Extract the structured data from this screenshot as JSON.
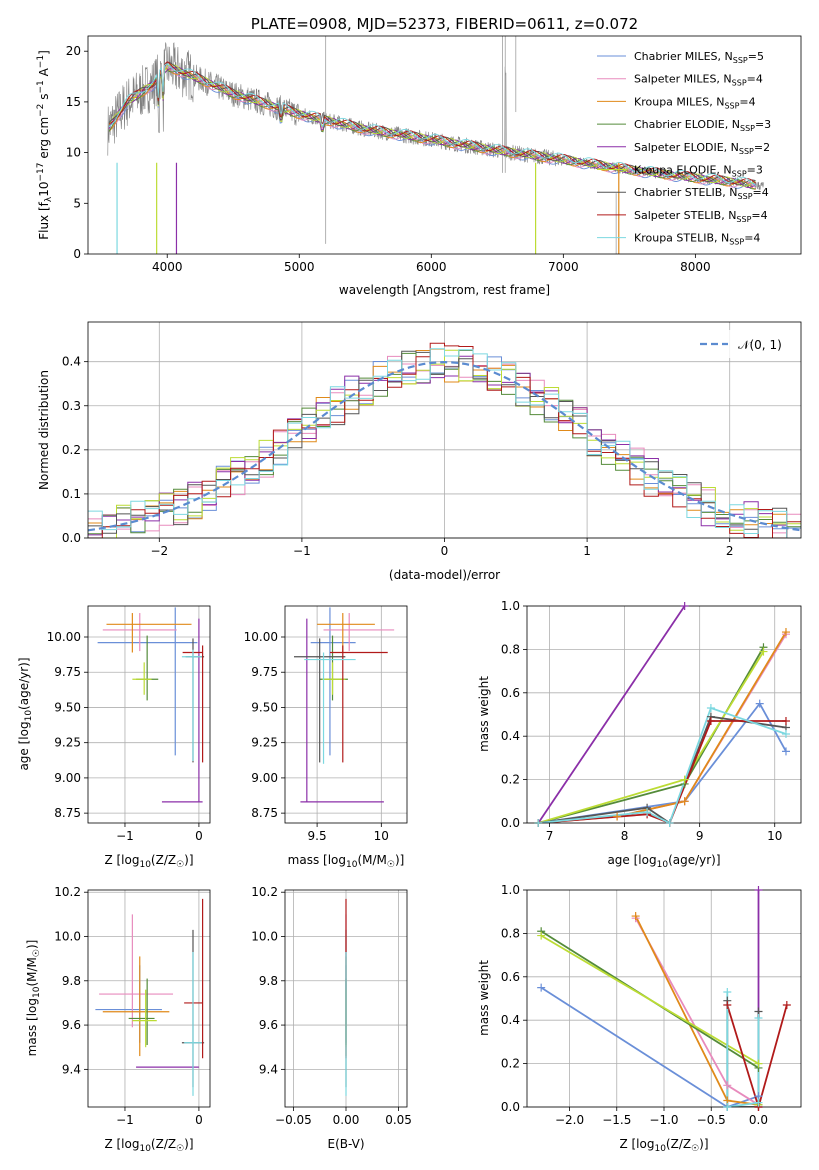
{
  "colors": [
    "#6a8fd8",
    "#e88bbd",
    "#e08a1a",
    "#548b3a",
    "#8b2fa8",
    "#bcdc34",
    "#555555",
    "#b11a1a",
    "#7cd8e0"
  ],
  "chart_data": [
    {
      "id": "spectrum",
      "type": "line",
      "title": "PLATE=0908, MJD=52373, FIBERID=0611, z=0.072",
      "xlabel": "wavelength [Angstrom, rest frame]",
      "ylabel_main": "Flux [f",
      "ylabel_sub": "λ",
      "ylabel_rest": "10",
      "ylabel_sup1": "−17",
      "ylabel_mid": " erg cm",
      "ylabel_sup2": "−2",
      "ylabel_mid2": " s",
      "ylabel_sup3": "−1",
      "ylabel_mid3": " A",
      "ylabel_sup4": "−1",
      "ylabel_end": "]",
      "xlim": [
        3400,
        8800
      ],
      "ylim": [
        0,
        21.5
      ],
      "xticks": [
        4000,
        5000,
        6000,
        7000,
        8000
      ],
      "yticks": [
        0,
        5,
        10,
        15,
        20
      ],
      "grid": false,
      "legend": "upper-right",
      "data_color": "#808080",
      "anchors_x": [
        3550,
        3700,
        3900,
        4000,
        4200,
        4500,
        5000,
        5500,
        6000,
        6500,
        7000,
        7500,
        8000,
        8300,
        8500
      ],
      "anchors_y": [
        12.3,
        15.0,
        16.8,
        18.5,
        17.5,
        15.8,
        13.8,
        12.3,
        11.3,
        10.2,
        9.3,
        8.3,
        7.5,
        7.1,
        6.7
      ],
      "series": [
        {
          "name": "Chabrier MILES, N",
          "sub": "SSP",
          "count": "=5"
        },
        {
          "name": "Salpeter MILES, N",
          "sub": "SSP",
          "count": "=4"
        },
        {
          "name": "Kroupa MILES, N",
          "sub": "SSP",
          "count": "=4"
        },
        {
          "name": "Chabrier ELODIE, N",
          "sub": "SSP",
          "count": "=3"
        },
        {
          "name": "Salpeter ELODIE, N",
          "sub": "SSP",
          "count": "=2"
        },
        {
          "name": "Kroupa ELODIE, N",
          "sub": "SSP",
          "count": "=3"
        },
        {
          "name": "Chabrier STELIB, N",
          "sub": "SSP",
          "count": "=4"
        },
        {
          "name": "Salpeter STELIB, N",
          "sub": "SSP",
          "count": "=4"
        },
        {
          "name": "Kroupa STELIB, N",
          "sub": "SSP",
          "count": "=4"
        }
      ]
    },
    {
      "id": "residuals",
      "type": "step",
      "xlabel": "(data-model)/error",
      "ylabel": "Normed distribution",
      "xlim": [
        -2.5,
        2.5
      ],
      "ylim": [
        0,
        0.49
      ],
      "xticks": [
        -2,
        -1,
        0,
        1,
        2
      ],
      "yticks": [
        0.0,
        0.1,
        0.2,
        0.3,
        0.4
      ],
      "grid": true,
      "legend": "upper-right",
      "gaussian_label": "𝒩(0, 1)",
      "gaussian_color": "#5b8bd0",
      "bin_width": 0.1
    },
    {
      "id": "age-vs-Z",
      "type": "errorbar",
      "xlabel": "Z [log",
      "xlabel_sub": "10",
      "xlabel_rest": "(Z/Z",
      "xlabel_sub2": "☉",
      "xlabel_end": ")]",
      "ylabel": "age  [log",
      "ylabel_sub": "10",
      "ylabel_rest": "(age/yr)]",
      "xlim": [
        -1.5,
        0.15
      ],
      "ylim": [
        8.68,
        10.22
      ],
      "xticks": [
        -1,
        0
      ],
      "yticks": [
        8.75,
        9.0,
        9.25,
        9.5,
        9.75,
        10.0
      ],
      "grid": true,
      "points": [
        {
          "x": -0.32,
          "y": 9.96,
          "xerr": [
            1.05,
            0.3
          ],
          "yerr": [
            0.8,
            0.25
          ]
        },
        {
          "x": -0.8,
          "y": 10.05,
          "xerr": [
            0.5,
            0.5
          ],
          "yerr": [
            0.15,
            0.12
          ]
        },
        {
          "x": -0.9,
          "y": 10.09,
          "xerr": [
            0.35,
            0.8
          ],
          "yerr": [
            0.2,
            0.08
          ]
        },
        {
          "x": -0.7,
          "y": 9.7,
          "xerr": [
            0.15,
            0.15
          ],
          "yerr": [
            0.15,
            0.31
          ]
        },
        {
          "x": 0.0,
          "y": 8.83,
          "xerr": [
            0.5,
            0.05
          ],
          "yerr": [
            0.0,
            1.3
          ]
        },
        {
          "x": -0.74,
          "y": 9.7,
          "xerr": [
            0.16,
            0.1
          ],
          "yerr": [
            0.11,
            0.12
          ]
        },
        {
          "x": -0.08,
          "y": 9.86,
          "xerr": [
            0.1,
            0.15
          ],
          "yerr": [
            0.75,
            0.13
          ]
        },
        {
          "x": 0.05,
          "y": 9.89,
          "xerr": [
            0.27,
            0.0
          ],
          "yerr": [
            0.78,
            0.05
          ]
        },
        {
          "x": -0.08,
          "y": 9.86,
          "xerr": [
            0.15,
            0.12
          ],
          "yerr": [
            0.74,
            0.05
          ]
        }
      ]
    },
    {
      "id": "age-vs-mass",
      "type": "errorbar",
      "xlabel": "mass [log",
      "xlabel_sub": "10",
      "xlabel_rest": "(M/M",
      "xlabel_sub2": "☉",
      "xlabel_end": ")]",
      "xlim": [
        9.25,
        10.2
      ],
      "ylim": [
        8.68,
        10.22
      ],
      "xticks": [
        9.5,
        10.0
      ],
      "yticks": [
        8.75,
        9.0,
        9.25,
        9.5,
        9.75,
        10.0
      ],
      "grid": true,
      "points": [
        {
          "x": 9.6,
          "y": 9.96,
          "xerr": [
            0.15,
            0.2
          ],
          "yerr": [
            0.8,
            0.25
          ]
        },
        {
          "x": 9.75,
          "y": 10.05,
          "xerr": [
            0.2,
            0.35
          ],
          "yerr": [
            0.15,
            0.12
          ]
        },
        {
          "x": 9.7,
          "y": 10.09,
          "xerr": [
            0.2,
            0.25
          ],
          "yerr": [
            0.2,
            0.08
          ]
        },
        {
          "x": 9.62,
          "y": 9.7,
          "xerr": [
            0.1,
            0.12
          ],
          "yerr": [
            0.15,
            0.31
          ]
        },
        {
          "x": 9.42,
          "y": 8.83,
          "xerr": [
            0.05,
            0.6
          ],
          "yerr": [
            0.0,
            1.3
          ]
        },
        {
          "x": 9.62,
          "y": 9.7,
          "xerr": [
            0.08,
            0.1
          ],
          "yerr": [
            0.11,
            0.12
          ]
        },
        {
          "x": 9.52,
          "y": 9.86,
          "xerr": [
            0.2,
            0.2
          ],
          "yerr": [
            0.75,
            0.13
          ]
        },
        {
          "x": 9.7,
          "y": 9.89,
          "xerr": [
            0.1,
            0.35
          ],
          "yerr": [
            0.78,
            0.05
          ]
        },
        {
          "x": 9.55,
          "y": 9.84,
          "xerr": [
            0.15,
            0.25
          ],
          "yerr": [
            0.74,
            0.05
          ]
        }
      ]
    },
    {
      "id": "weight-vs-age",
      "type": "line",
      "xlabel": "age  [log",
      "xlabel_sub": "10",
      "xlabel_rest": "(age/yr)]",
      "ylabel": "mass weight",
      "xlim": [
        6.7,
        10.35
      ],
      "ylim": [
        0,
        1.0
      ],
      "xticks": [
        7,
        8,
        9,
        10
      ],
      "yticks": [
        0.0,
        0.2,
        0.4,
        0.6,
        0.8,
        1.0
      ],
      "grid": true,
      "series": [
        {
          "x": [
            6.85,
            8.8,
            9.8,
            10.15
          ],
          "y": [
            0.0,
            0.1,
            0.55,
            0.33
          ]
        },
        {
          "x": [
            6.85,
            7.9,
            8.8,
            10.15
          ],
          "y": [
            0.0,
            0.03,
            0.1,
            0.87
          ]
        },
        {
          "x": [
            6.85,
            7.9,
            8.8,
            10.15
          ],
          "y": [
            0.0,
            0.03,
            0.1,
            0.88
          ]
        },
        {
          "x": [
            6.85,
            8.8,
            9.85
          ],
          "y": [
            0.0,
            0.18,
            0.81
          ]
        },
        {
          "x": [
            6.85,
            8.8
          ],
          "y": [
            0.0,
            1.0
          ]
        },
        {
          "x": [
            6.85,
            8.8,
            9.85
          ],
          "y": [
            0.0,
            0.2,
            0.79
          ]
        },
        {
          "x": [
            6.85,
            8.3,
            8.6,
            9.15,
            10.15
          ],
          "y": [
            0.0,
            0.07,
            0.0,
            0.49,
            0.44
          ]
        },
        {
          "x": [
            6.85,
            8.3,
            8.6,
            9.15,
            10.15
          ],
          "y": [
            0.0,
            0.04,
            0.0,
            0.47,
            0.47
          ]
        },
        {
          "x": [
            6.85,
            8.3,
            8.6,
            9.15,
            10.15
          ],
          "y": [
            0.0,
            0.05,
            0.0,
            0.53,
            0.41
          ]
        }
      ]
    },
    {
      "id": "mass-vs-Z",
      "type": "errorbar",
      "xlabel": "Z [log",
      "xlabel_sub": "10",
      "xlabel_rest": "(Z/Z",
      "xlabel_sub2": "☉",
      "xlabel_end": ")]",
      "ylabel": "mass [log",
      "ylabel_sub": "10",
      "ylabel_rest": "(M/M",
      "ylabel_sub2": "☉",
      "ylabel_end": ")]",
      "xlim": [
        -1.5,
        0.15
      ],
      "ylim": [
        9.23,
        10.21
      ],
      "xticks": [
        -1,
        0
      ],
      "yticks": [
        9.4,
        9.6,
        9.8,
        10.0,
        10.2
      ],
      "grid": true,
      "points": [
        {
          "x": -0.8,
          "y": 9.67,
          "xerr": [
            0.6,
            0.3
          ],
          "yerr": [
            0.15,
            0.2
          ]
        },
        {
          "x": -0.9,
          "y": 9.74,
          "xerr": [
            0.45,
            0.55
          ],
          "yerr": [
            0.15,
            0.36
          ]
        },
        {
          "x": -0.8,
          "y": 9.66,
          "xerr": [
            0.5,
            0.4
          ],
          "yerr": [
            0.2,
            0.25
          ]
        },
        {
          "x": -0.7,
          "y": 9.63,
          "xerr": [
            0.25,
            0.1
          ],
          "yerr": [
            0.12,
            0.18
          ]
        },
        {
          "x": -0.3,
          "y": 9.41,
          "xerr": [
            0.55,
            0.3
          ],
          "yerr": [
            0.0,
            0.0
          ]
        },
        {
          "x": -0.72,
          "y": 9.62,
          "xerr": [
            0.18,
            0.15
          ],
          "yerr": [
            0.12,
            0.14
          ]
        },
        {
          "x": -0.08,
          "y": 9.52,
          "xerr": [
            0.15,
            0.15
          ],
          "yerr": [
            0.2,
            0.51
          ]
        },
        {
          "x": 0.05,
          "y": 9.7,
          "xerr": [
            0.25,
            0.0
          ],
          "yerr": [
            0.25,
            0.47
          ]
        },
        {
          "x": -0.08,
          "y": 9.52,
          "xerr": [
            0.12,
            0.12
          ],
          "yerr": [
            0.24,
            0.41
          ]
        }
      ]
    },
    {
      "id": "mass-vs-ebv",
      "type": "errorbar",
      "xlabel": "E(B-V)",
      "xlim": [
        -0.058,
        0.058
      ],
      "ylim": [
        9.23,
        10.21
      ],
      "xticks": [
        -0.05,
        0.0,
        0.05
      ],
      "xticklabels": [
        "−0.05",
        "0.00",
        "0.05"
      ],
      "yticks": [
        9.4,
        9.6,
        9.8,
        10.0,
        10.2
      ],
      "grid": true,
      "points": [
        {
          "x": 0.0,
          "y": 9.67,
          "yerr": [
            0.15,
            0.2
          ]
        },
        {
          "x": 0.0,
          "y": 9.74,
          "yerr": [
            0.15,
            0.36
          ]
        },
        {
          "x": 0.0,
          "y": 9.66,
          "yerr": [
            0.2,
            0.25
          ]
        },
        {
          "x": 0.0,
          "y": 9.63,
          "yerr": [
            0.12,
            0.18
          ]
        },
        {
          "x": 0.0,
          "y": 9.41,
          "yerr": [
            0.0,
            0.0
          ]
        },
        {
          "x": 0.0,
          "y": 9.62,
          "yerr": [
            0.12,
            0.14
          ]
        },
        {
          "x": 0.0,
          "y": 9.52,
          "yerr": [
            0.2,
            0.51
          ]
        },
        {
          "x": 0.0,
          "y": 9.7,
          "yerr": [
            0.25,
            0.47
          ]
        },
        {
          "x": 0.0,
          "y": 9.52,
          "yerr": [
            0.24,
            0.41
          ]
        }
      ]
    },
    {
      "id": "weight-vs-Z",
      "type": "line",
      "xlabel": "Z [log",
      "xlabel_sub": "10",
      "xlabel_rest": "(Z/Z",
      "xlabel_sub2": "☉",
      "xlabel_end": ")]",
      "ylabel": "mass weight",
      "xlim": [
        -2.45,
        0.45
      ],
      "ylim": [
        0,
        1.0
      ],
      "xticks": [
        -2.0,
        -1.5,
        -1.0,
        -0.5,
        0.0
      ],
      "xticklabels": [
        "−2.0",
        "−1.5",
        "−1.0",
        "−0.5",
        "0.0"
      ],
      "yticks": [
        0.0,
        0.2,
        0.4,
        0.6,
        0.8,
        1.0
      ],
      "grid": true,
      "series": [
        {
          "x": [
            -2.3,
            -0.33,
            0.0
          ],
          "y": [
            0.55,
            0.0,
            0.05
          ]
        },
        {
          "x": [
            -1.3,
            -0.33,
            0.0
          ],
          "y": [
            0.87,
            0.1,
            0.01
          ]
        },
        {
          "x": [
            -1.3,
            -0.33,
            0.0
          ],
          "y": [
            0.88,
            0.03,
            0.01
          ]
        },
        {
          "x": [
            -2.3,
            0.0,
            0.0
          ],
          "y": [
            0.81,
            0.18,
            0.01
          ]
        },
        {
          "x": [
            0.0,
            0.0
          ],
          "y": [
            1.0,
            0.0
          ]
        },
        {
          "x": [
            -2.3,
            0.0,
            0.0
          ],
          "y": [
            0.79,
            0.2,
            0.01
          ]
        },
        {
          "x": [
            -0.33,
            -0.33,
            0.0,
            0.0
          ],
          "y": [
            0.49,
            0.0,
            0.0,
            0.44
          ]
        },
        {
          "x": [
            -0.33,
            0.0,
            0.3
          ],
          "y": [
            0.47,
            0.0,
            0.47
          ]
        },
        {
          "x": [
            -0.33,
            -0.33,
            0.0,
            0.0
          ],
          "y": [
            0.53,
            0.0,
            0.02,
            0.41
          ]
        }
      ]
    }
  ]
}
